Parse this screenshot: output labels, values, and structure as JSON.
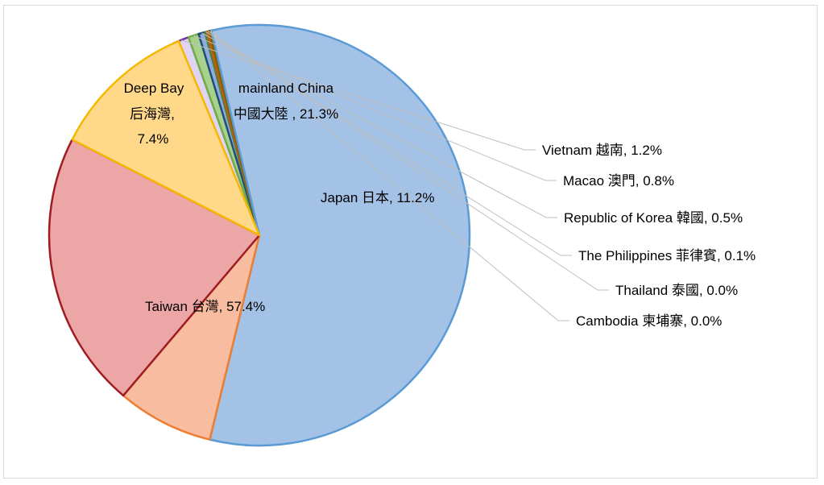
{
  "chart_data": {
    "type": "pie",
    "title": "",
    "start_angle_deg": 114,
    "slices": [
      {
        "name": "Vietnam 越南",
        "label": "Vietnam 越南, 1.2%",
        "value": 1.2,
        "color": "#e0d4f4",
        "stroke": "#7030a0"
      },
      {
        "name": "Macao 澳門",
        "label": "Macao 澳門, 0.8%",
        "value": 0.8,
        "color": "#a9d18e",
        "stroke": "#70ad47"
      },
      {
        "name": "Republic of Korea 韓國",
        "label": "Republic of Korea 韓國, 0.5%",
        "value": 0.5,
        "color": "#8faadc",
        "stroke": "#1f4e79"
      },
      {
        "name": "The Philippines 菲律賓",
        "label": "The Philippines 菲律賓, 0.1%",
        "value": 0.1,
        "color": "#c5e0b4",
        "stroke": "#548235"
      },
      {
        "name": "Thailand 泰國",
        "label": "Thailand 泰國, 0.0%",
        "value": 0.0,
        "color": "#f4b183",
        "stroke": "#c55a11"
      },
      {
        "name": "Cambodia 柬埔寨",
        "label": "Cambodia 柬埔寨, 0.0%",
        "value": 0.0,
        "color": "#c9a24a",
        "stroke": "#7f6000"
      },
      {
        "name": "Taiwan 台灣",
        "label": "Taiwan 台灣, 57.4%",
        "value": 57.4,
        "color": "#a4c2e6",
        "stroke": "#5b9bd5"
      },
      {
        "name": "Deep Bay 后海灣",
        "label_lines": [
          "Deep Bay",
          "后海灣,",
          "7.4%"
        ],
        "value": 7.4,
        "color": "#f8bca0",
        "stroke": "#ed7d31"
      },
      {
        "name": "mainland China 中國大陸",
        "label_lines": [
          "mainland China",
          "中國大陸 , 21.3%"
        ],
        "value": 21.3,
        "color": "#eda6a6",
        "stroke": "#9e1c22"
      },
      {
        "name": "Japan 日本",
        "label": "Japan 日本, 11.2%",
        "value": 11.2,
        "color": "#ffd88a",
        "stroke": "#f5b800"
      }
    ]
  }
}
